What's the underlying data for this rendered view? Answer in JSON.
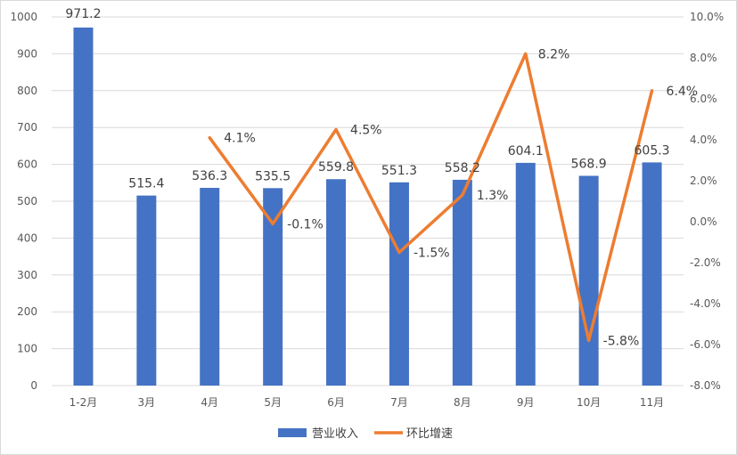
{
  "chart_data": {
    "type": "bar",
    "categories": [
      "1-2月",
      "3月",
      "4月",
      "5月",
      "6月",
      "7月",
      "8月",
      "9月",
      "10月",
      "11月"
    ],
    "series": [
      {
        "name": "营业收入",
        "type": "bar",
        "axis": "left",
        "values": [
          971.2,
          515.4,
          536.3,
          535.5,
          559.8,
          551.3,
          558.2,
          604.1,
          568.9,
          605.3
        ],
        "labels": [
          "971.2",
          "515.4",
          "536.3",
          "535.5",
          "559.8",
          "551.3",
          "558.2",
          "604.1",
          "568.9",
          "605.3"
        ],
        "color": "#4472c4"
      },
      {
        "name": "环比增速",
        "type": "line",
        "axis": "right",
        "values": [
          null,
          null,
          4.1,
          -0.1,
          4.5,
          -1.5,
          1.3,
          8.2,
          -5.8,
          6.4
        ],
        "labels": [
          "",
          "",
          "4.1%",
          "-0.1%",
          "4.5%",
          "-1.5%",
          "1.3%",
          "8.2%",
          "-5.8%",
          "6.4%"
        ],
        "color": "#ed7d31"
      }
    ],
    "ylim": [
      0,
      1000
    ],
    "yticks": [
      "0",
      "100",
      "200",
      "300",
      "400",
      "500",
      "600",
      "700",
      "800",
      "900",
      "1000"
    ],
    "y2lim": [
      -8,
      10
    ],
    "y2ticks": [
      "-8.0%",
      "-6.0%",
      "-4.0%",
      "-2.0%",
      "0.0%",
      "2.0%",
      "4.0%",
      "6.0%",
      "8.0%",
      "10.0%"
    ],
    "grid": true,
    "legend_position": "bottom"
  }
}
